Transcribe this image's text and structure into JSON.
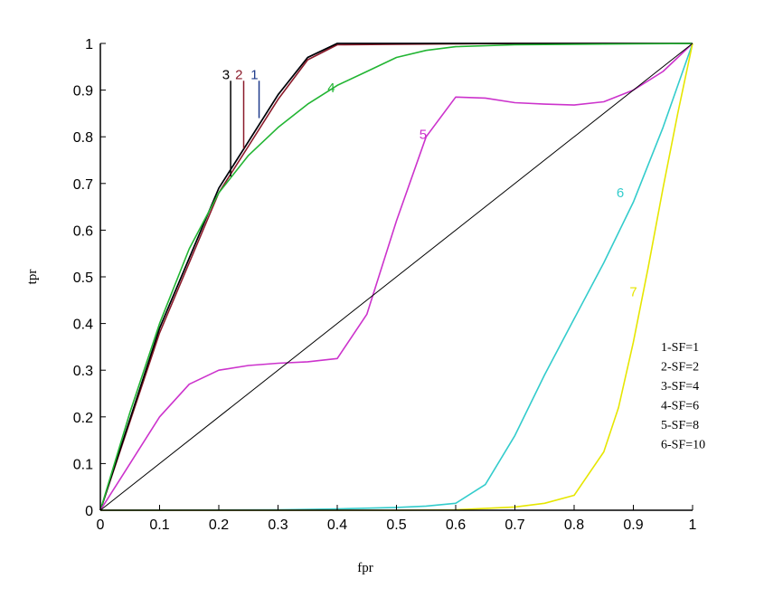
{
  "chart_data": {
    "type": "line",
    "title": "",
    "xlabel": "fpr",
    "ylabel": "tpr",
    "xlim": [
      0,
      1
    ],
    "ylim": [
      0,
      1
    ],
    "xticks": [
      "0",
      "0.1",
      "0.2",
      "0.3",
      "0.4",
      "0.5",
      "0.6",
      "0.7",
      "0.8",
      "0.9",
      "1"
    ],
    "yticks": [
      "0",
      "0.1",
      "0.2",
      "0.3",
      "0.4",
      "0.5",
      "0.6",
      "0.7",
      "0.8",
      "0.9",
      "1"
    ],
    "grid": false,
    "legend": {
      "placement": "right",
      "entries": [
        "1-SF=1",
        "2-SF=2",
        "3-SF=4",
        "4-SF=6",
        "5-SF=8",
        "6-SF=10"
      ]
    },
    "series": [
      {
        "name": "1",
        "color": "#1f3c8c",
        "x": [
          0,
          0.1,
          0.2,
          0.25,
          0.3,
          0.35,
          0.4,
          0.5,
          0.6,
          0.7,
          0.8,
          0.9,
          1
        ],
        "y": [
          0,
          0.39,
          0.69,
          0.79,
          0.89,
          0.97,
          1.0,
          1.0,
          1.0,
          1.0,
          1.0,
          1.0,
          1.0
        ]
      },
      {
        "name": "2",
        "color": "#8b1a2a",
        "x": [
          0,
          0.1,
          0.2,
          0.25,
          0.3,
          0.35,
          0.4,
          0.5,
          0.6,
          0.7,
          0.8,
          0.9,
          1
        ],
        "y": [
          0,
          0.38,
          0.68,
          0.78,
          0.88,
          0.965,
          0.997,
          0.998,
          0.999,
          1.0,
          1.0,
          1.0,
          1.0
        ]
      },
      {
        "name": "3",
        "color": "#000000",
        "x": [
          0,
          0.1,
          0.2,
          0.25,
          0.3,
          0.35,
          0.4,
          0.5,
          0.6,
          0.7,
          0.8,
          0.9,
          1
        ],
        "y": [
          0,
          0.39,
          0.69,
          0.79,
          0.89,
          0.97,
          1.0,
          1.0,
          1.0,
          1.0,
          1.0,
          1.0,
          1.0
        ]
      },
      {
        "name": "4",
        "color": "#22b533",
        "x": [
          0,
          0.05,
          0.1,
          0.15,
          0.2,
          0.25,
          0.3,
          0.35,
          0.4,
          0.45,
          0.5,
          0.55,
          0.6,
          0.7,
          0.8,
          0.9,
          1
        ],
        "y": [
          0,
          0.21,
          0.4,
          0.56,
          0.68,
          0.76,
          0.82,
          0.87,
          0.91,
          0.94,
          0.97,
          0.985,
          0.993,
          0.997,
          0.998,
          0.999,
          1.0
        ]
      },
      {
        "name": "5",
        "color": "#cc33cc",
        "x": [
          0,
          0.05,
          0.1,
          0.15,
          0.2,
          0.25,
          0.3,
          0.35,
          0.4,
          0.45,
          0.5,
          0.55,
          0.6,
          0.65,
          0.7,
          0.75,
          0.8,
          0.85,
          0.9,
          0.95,
          1
        ],
        "y": [
          0,
          0.1,
          0.2,
          0.27,
          0.3,
          0.31,
          0.315,
          0.318,
          0.325,
          0.42,
          0.62,
          0.8,
          0.885,
          0.883,
          0.873,
          0.87,
          0.868,
          0.875,
          0.9,
          0.94,
          1.0
        ]
      },
      {
        "name": "6",
        "color": "#33cccc",
        "x": [
          0,
          0.3,
          0.4,
          0.5,
          0.55,
          0.6,
          0.65,
          0.7,
          0.75,
          0.8,
          0.85,
          0.9,
          0.95,
          1
        ],
        "y": [
          0,
          0.001,
          0.003,
          0.006,
          0.009,
          0.015,
          0.055,
          0.16,
          0.29,
          0.41,
          0.53,
          0.66,
          0.82,
          1.0
        ]
      },
      {
        "name": "7",
        "color": "#e6e600",
        "x": [
          0,
          0.5,
          0.6,
          0.7,
          0.75,
          0.8,
          0.85,
          0.875,
          0.9,
          0.925,
          0.95,
          0.975,
          1
        ],
        "y": [
          0,
          0.0,
          0.001,
          0.007,
          0.015,
          0.032,
          0.125,
          0.22,
          0.36,
          0.52,
          0.69,
          0.85,
          1.0
        ]
      },
      {
        "name": "",
        "color": "#000000",
        "x": [
          0,
          1
        ],
        "y": [
          0,
          1
        ]
      }
    ],
    "series_labels": [
      {
        "text": "3",
        "color": "#000000",
        "x": 0.22,
        "y_top": 0.92,
        "y_bottom": 0.715
      },
      {
        "text": "2",
        "color": "#8b1a2a",
        "x": 0.242,
        "y_top": 0.92,
        "y_bottom": 0.775
      },
      {
        "text": "1",
        "color": "#1f3c8c",
        "x": 0.268,
        "y_top": 0.92,
        "y_bottom": 0.84
      },
      {
        "text": "4",
        "color": "#22b533",
        "x": 0.39,
        "y": 0.905
      },
      {
        "text": "5",
        "color": "#cc33cc",
        "x": 0.545,
        "y": 0.805
      },
      {
        "text": "6",
        "color": "#33cccc",
        "x": 0.878,
        "y": 0.68
      },
      {
        "text": "7",
        "color": "#e6e600",
        "x": 0.9,
        "y": 0.468
      }
    ]
  }
}
